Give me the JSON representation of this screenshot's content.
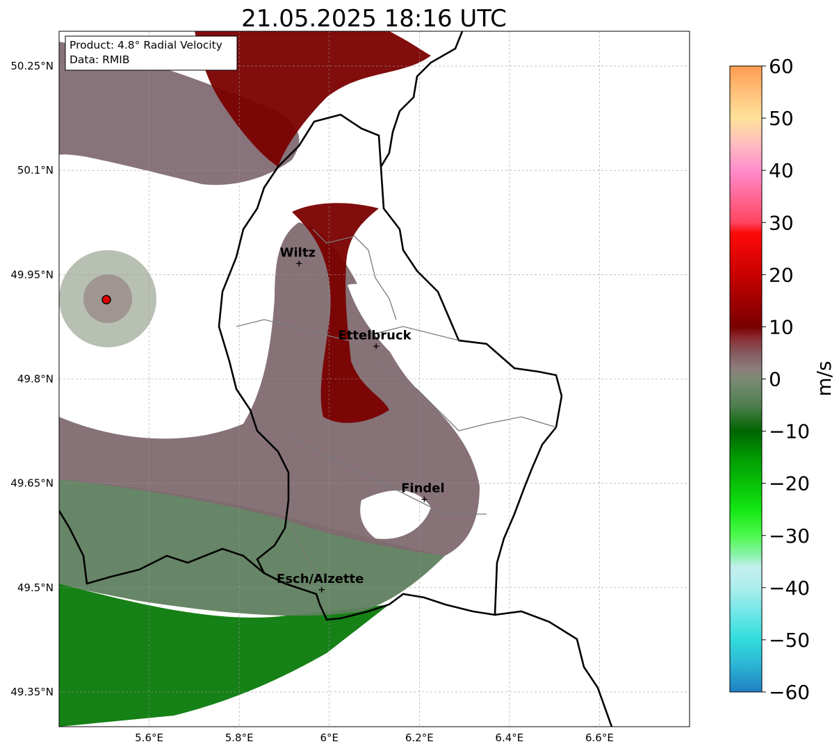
{
  "title": "21.05.2025 18:16 UTC",
  "info_box": {
    "line1": "Product: 4.8° Radial Velocity",
    "line2": "Data: RMIB"
  },
  "map": {
    "lon_range": [
      5.4,
      6.8
    ],
    "lat_range": [
      49.3,
      50.3
    ],
    "lon_ticks": [
      {
        "value": 5.6,
        "label": "5.6°E"
      },
      {
        "value": 5.8,
        "label": "5.8°E"
      },
      {
        "value": 6.0,
        "label": "6°E"
      },
      {
        "value": 6.2,
        "label": "6.2°E"
      },
      {
        "value": 6.4,
        "label": "6.4°E"
      },
      {
        "value": 6.6,
        "label": "6.6°E"
      }
    ],
    "lat_ticks": [
      {
        "value": 49.35,
        "label": "49.35°N"
      },
      {
        "value": 49.5,
        "label": "49.5°N"
      },
      {
        "value": 49.65,
        "label": "49.65°N"
      },
      {
        "value": 49.8,
        "label": "49.8°N"
      },
      {
        "value": 49.95,
        "label": "49.95°N"
      },
      {
        "value": 50.1,
        "label": "50.1°N"
      },
      {
        "value": 50.25,
        "label": "50.25°N"
      }
    ],
    "gridlines": true,
    "radar_site": {
      "lon": 5.505,
      "lat": 49.914,
      "color": "#e00000"
    },
    "cities": [
      {
        "name": "Wiltz",
        "lon": 5.933,
        "lat": 49.966
      },
      {
        "name": "Ettelbruck",
        "lon": 6.104,
        "lat": 49.847
      },
      {
        "name": "Findel",
        "lon": 6.211,
        "lat": 49.627
      },
      {
        "name": "Esch/Alzette",
        "lon": 5.983,
        "lat": 49.497
      }
    ]
  },
  "colorbar": {
    "label": "m/s",
    "min": -60,
    "max": 60,
    "ticks": [
      {
        "value": 60,
        "label": "60"
      },
      {
        "value": 50,
        "label": "50"
      },
      {
        "value": 40,
        "label": "40"
      },
      {
        "value": 30,
        "label": "30"
      },
      {
        "value": 20,
        "label": "20"
      },
      {
        "value": 10,
        "label": "10"
      },
      {
        "value": 0,
        "label": "0"
      },
      {
        "value": -10,
        "label": "−10"
      },
      {
        "value": -20,
        "label": "−20"
      },
      {
        "value": -30,
        "label": "−30"
      },
      {
        "value": -40,
        "label": "−40"
      },
      {
        "value": -50,
        "label": "−50"
      },
      {
        "value": -60,
        "label": "−60"
      }
    ],
    "stops": [
      {
        "value": -60,
        "color": "#1f7fc4"
      },
      {
        "value": -55,
        "color": "#2cb3d4"
      },
      {
        "value": -50,
        "color": "#31dcdc"
      },
      {
        "value": -45,
        "color": "#6de6e6"
      },
      {
        "value": -40,
        "color": "#aeeeee"
      },
      {
        "value": -36,
        "color": "#c4f0ee"
      },
      {
        "value": -34,
        "color": "#8ef2b0"
      },
      {
        "value": -30,
        "color": "#4dfa4d"
      },
      {
        "value": -25,
        "color": "#12e612"
      },
      {
        "value": -20,
        "color": "#08c008"
      },
      {
        "value": -15,
        "color": "#029a02"
      },
      {
        "value": -10,
        "color": "#006400"
      },
      {
        "value": -5,
        "color": "#4f7f4f"
      },
      {
        "value": 0,
        "color": "#7b8a74"
      },
      {
        "value": 2,
        "color": "#8d7c7c"
      },
      {
        "value": 5,
        "color": "#865a60"
      },
      {
        "value": 8,
        "color": "#8a2a30"
      },
      {
        "value": 10,
        "color": "#7a0000"
      },
      {
        "value": 20,
        "color": "#c80000"
      },
      {
        "value": 28,
        "color": "#ff0a0a"
      },
      {
        "value": 30,
        "color": "#ff4560"
      },
      {
        "value": 40,
        "color": "#ff8ccc"
      },
      {
        "value": 45,
        "color": "#ffbcc0"
      },
      {
        "value": 50,
        "color": "#ffe29a"
      },
      {
        "value": 55,
        "color": "#ffc07a"
      },
      {
        "value": 60,
        "color": "#ff9c50"
      }
    ]
  }
}
